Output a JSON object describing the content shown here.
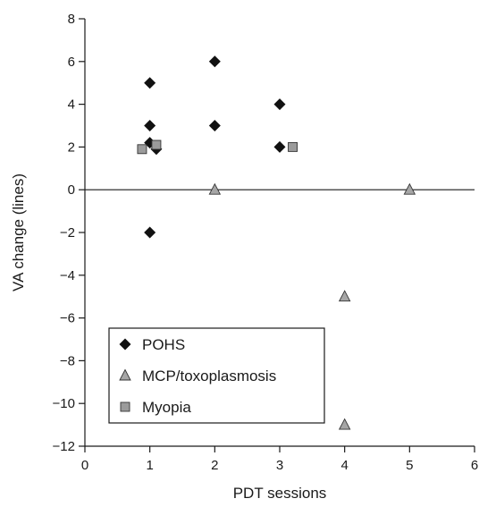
{
  "chart_data": {
    "type": "scatter",
    "title": "",
    "xlabel": "PDT sessions",
    "ylabel": "VA change (lines)",
    "xlim": [
      0,
      6
    ],
    "ylim": [
      -12,
      8
    ],
    "x_ticks": [
      "0",
      "1",
      "2",
      "3",
      "4",
      "5",
      "6"
    ],
    "y_ticks": [
      "8",
      "6",
      "4",
      "2",
      "0",
      "−2",
      "−4",
      "−6",
      "−8",
      "−10",
      "−12"
    ],
    "grid": false,
    "reference_line_y": 0,
    "legend_position": "bottom-left",
    "series": [
      {
        "name": "POHS",
        "marker": "diamond",
        "color": "#111111",
        "points": [
          [
            1,
            5
          ],
          [
            1,
            3
          ],
          [
            1,
            2.2
          ],
          [
            1.1,
            1.9
          ],
          [
            1,
            -2
          ],
          [
            2,
            6
          ],
          [
            2,
            3
          ],
          [
            3,
            4
          ],
          [
            3,
            2
          ]
        ]
      },
      {
        "name": "MCP/toxoplasmosis",
        "marker": "triangle",
        "color": "#a6a6a6",
        "points": [
          [
            2,
            0
          ],
          [
            5,
            0
          ],
          [
            4,
            -5
          ],
          [
            4,
            -11
          ]
        ]
      },
      {
        "name": "Myopia",
        "marker": "square",
        "color": "#9b9b9b",
        "points": [
          [
            0.88,
            1.9
          ],
          [
            1.1,
            2.1
          ],
          [
            3.2,
            2
          ]
        ]
      }
    ]
  }
}
